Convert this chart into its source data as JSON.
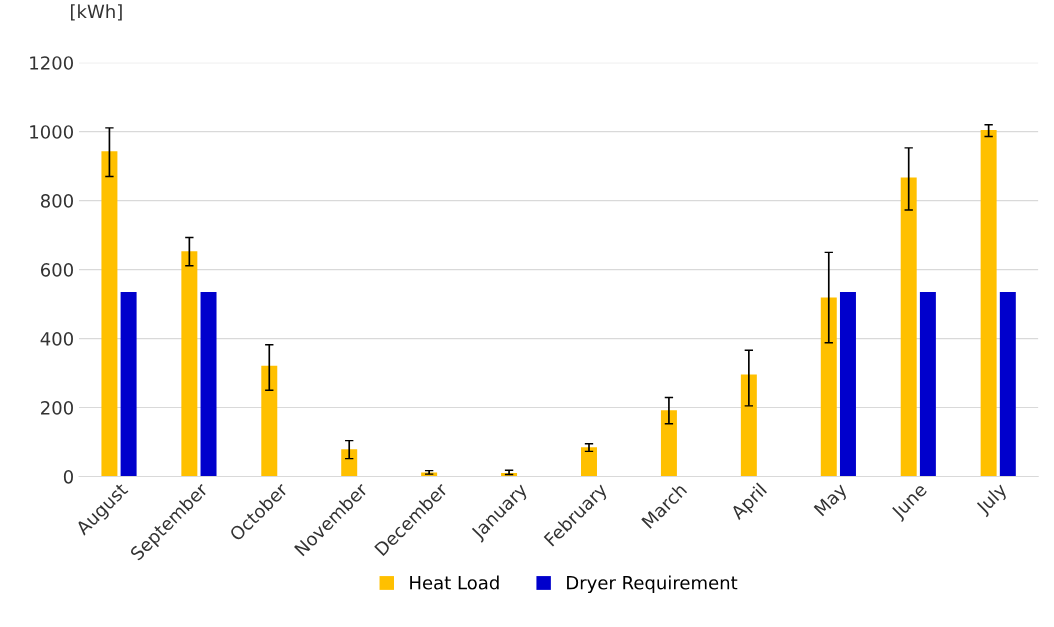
{
  "chart_data": {
    "type": "bar",
    "ylabel": "[kWh]",
    "categories": [
      "August",
      "September",
      "October",
      "November",
      "December",
      "January",
      "February",
      "March",
      "April",
      "May",
      "June",
      "July"
    ],
    "series": [
      {
        "name": "Heat Load",
        "color": "#ffc000",
        "values": [
          943,
          653,
          321,
          79,
          12,
          10,
          85,
          192,
          296,
          519,
          867,
          1005
        ],
        "errors": [
          [
            870,
            1011
          ],
          [
            611,
            693
          ],
          [
            250,
            382
          ],
          [
            52,
            104
          ],
          [
            7,
            17
          ],
          [
            6,
            18
          ],
          [
            73,
            95
          ],
          [
            153,
            229
          ],
          [
            205,
            366
          ],
          [
            388,
            650
          ],
          [
            773,
            953
          ],
          [
            986,
            1020
          ]
        ]
      },
      {
        "name": "Dryer Requirement",
        "color": "#0000cc",
        "values": [
          535,
          535,
          null,
          null,
          null,
          null,
          null,
          null,
          null,
          535,
          535,
          535
        ]
      }
    ],
    "ylim": [
      0,
      1200
    ],
    "yticks": [
      0,
      200,
      400,
      600,
      800,
      1000,
      1200
    ],
    "grid": "y",
    "legend": "bottom"
  }
}
